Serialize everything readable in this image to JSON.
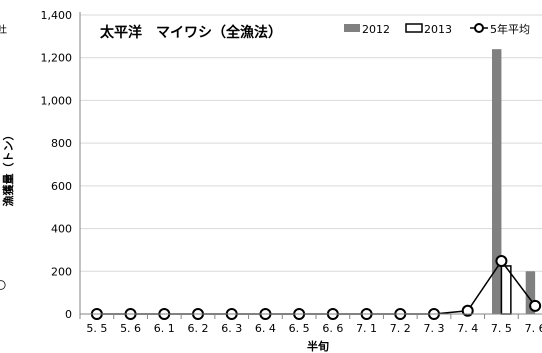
{
  "chart_data": {
    "type": "bar",
    "title": "太平洋　マイワシ（全漁法）",
    "xlabel": "半旬",
    "ylabel": "漁獲量（トン）",
    "ylim": [
      0,
      1400
    ],
    "yticks": [
      "0",
      "200",
      "400",
      "600",
      "800",
      "1,000",
      "1,200",
      "1,400"
    ],
    "ytick_values": [
      0,
      200,
      400,
      600,
      800,
      1000,
      1200,
      1400
    ],
    "grid": true,
    "legend_position": "top-right",
    "categories": [
      "5.5",
      "5.6",
      "6.1",
      "6.2",
      "6.3",
      "6.4",
      "6.5",
      "6.6",
      "7.1",
      "7.2",
      "7.3",
      "7.4",
      "7.5",
      "7.6"
    ],
    "category_labels": [
      "5. 5",
      "5. 6",
      "6. 1",
      "6. 2",
      "6. 3",
      "6. 4",
      "6. 5",
      "6. 6",
      "7. 1",
      "7. 2",
      "7. 3",
      "7. 4",
      "7. 5",
      "7. 6"
    ],
    "series": [
      {
        "name": "2012",
        "kind": "bar",
        "color": "#808080",
        "values": [
          0,
          0,
          0,
          0,
          0,
          0,
          0,
          0,
          0,
          0,
          0,
          0,
          1240,
          200
        ]
      },
      {
        "name": "2013",
        "kind": "bar",
        "color": "#ffffff",
        "stroke": "#000000",
        "values": [
          0,
          0,
          0,
          0,
          0,
          0,
          0,
          0,
          0,
          0,
          0,
          0,
          225,
          null
        ]
      },
      {
        "name": "5年平均",
        "kind": "line",
        "color": "#000000",
        "values": [
          0,
          0,
          0,
          0,
          0,
          0,
          0,
          0,
          0,
          0,
          0,
          15,
          248,
          38
        ]
      }
    ]
  },
  "left_edge_fragments": [
    "吐",
    "〇"
  ]
}
